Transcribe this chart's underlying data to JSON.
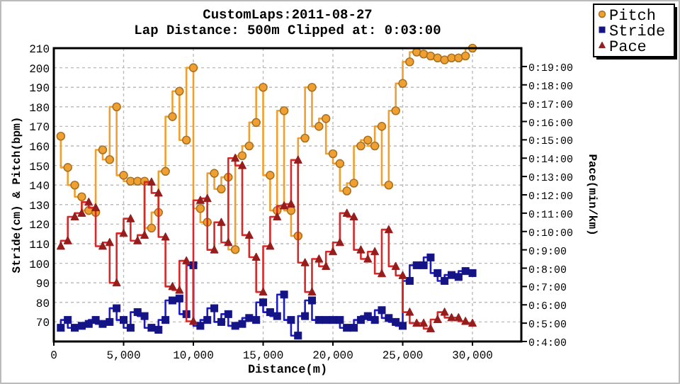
{
  "chart_data": {
    "type": "step",
    "title": "CustomLaps:2011-08-27",
    "subtitle": "Lap Distance: 500m Clipped at: 0:03:00",
    "xlabel": "Distance(m)",
    "ylabel": "Stride(cm) & Pitch(bpm)",
    "y2label": "Pace(min/km)",
    "x": [
      500,
      1000,
      1500,
      2000,
      2500,
      3000,
      3500,
      4000,
      4500,
      5000,
      5500,
      6000,
      6500,
      7000,
      7500,
      8000,
      8500,
      9000,
      9500,
      10000,
      10500,
      11000,
      11500,
      12000,
      12500,
      13000,
      13500,
      14000,
      14500,
      15000,
      15500,
      16000,
      16500,
      17000,
      17500,
      18000,
      18500,
      19000,
      19500,
      20000,
      20500,
      21000,
      21500,
      22000,
      22500,
      23000,
      23500,
      24000,
      24500,
      25000,
      25500,
      26000,
      26500,
      27000,
      27500,
      28000,
      28500,
      29000,
      29500,
      30000
    ],
    "series": [
      {
        "name": "Pitch",
        "color": "#f0a030",
        "marker": "circle",
        "values": [
          165,
          149,
          140,
          134,
          127,
          126,
          158,
          153,
          180,
          145,
          142,
          142,
          142,
          118,
          126,
          147,
          175,
          188,
          163,
          200,
          128,
          121,
          146,
          138,
          144,
          107,
          155,
          160,
          172,
          190,
          145,
          127,
          178,
          127,
          114,
          164,
          190,
          170,
          174,
          156,
          151,
          137,
          141,
          160,
          163,
          160,
          170,
          140,
          178,
          192,
          203,
          208,
          207,
          206,
          205,
          204,
          205,
          205,
          206,
          210
        ]
      },
      {
        "name": "Stride",
        "color": "#1c1cc0",
        "marker": "square",
        "values": [
          67,
          71,
          67,
          68,
          69,
          71,
          69,
          70,
          77,
          71,
          67,
          75,
          73,
          67,
          66,
          71,
          81,
          82,
          74,
          99,
          68,
          71,
          77,
          70,
          74,
          68,
          69,
          72,
          71,
          80,
          75,
          73,
          84,
          71,
          63,
          73,
          81,
          71,
          71,
          71,
          71,
          67,
          67,
          71,
          73,
          71,
          76,
          72,
          70,
          68,
          91,
          99,
          99,
          103,
          95,
          91,
          94,
          93,
          96,
          95
        ]
      },
      {
        "name": "Pace",
        "color": "#d82828",
        "marker": "triangle",
        "axis": "y2",
        "values": [
          9.2,
          9.5,
          10.8,
          11.0,
          11.6,
          11.3,
          9.2,
          9.4,
          7.2,
          9.9,
          10.7,
          9.5,
          9.8,
          12.7,
          12.1,
          9.7,
          7.0,
          6.8,
          8.4,
          5.1,
          11.7,
          11.8,
          9.0,
          10.5,
          9.4,
          14.0,
          13.6,
          9.8,
          8.6,
          6.7,
          9.2,
          10.8,
          11.4,
          11.5,
          13.9,
          8.3,
          6.7,
          8.5,
          8.1,
          8.9,
          9.4,
          11.0,
          10.8,
          9.0,
          8.5,
          8.9,
          7.7,
          10.1,
          8.1,
          7.6,
          5.6,
          5.0,
          5.0,
          4.7,
          5.2,
          5.6,
          5.3,
          5.3,
          5.1,
          5.0
        ]
      }
    ],
    "xlim": [
      0,
      33500
    ],
    "xticks": [
      0,
      {
        "value": 5000,
        "label": "5,000"
      },
      {
        "value": 10000,
        "label": "10,000"
      },
      {
        "value": 15000,
        "label": "15,000"
      },
      {
        "value": 20000,
        "label": "20,000"
      },
      {
        "value": 25000,
        "label": "25,000"
      },
      {
        "value": 30000,
        "label": "30,000"
      }
    ],
    "ylim": [
      60,
      210
    ],
    "yticks": [
      70,
      80,
      90,
      100,
      110,
      120,
      130,
      140,
      150,
      160,
      170,
      180,
      190,
      200,
      210
    ],
    "y2lim": [
      4,
      20
    ],
    "y2ticks": [
      {
        "value": 4,
        "label": "0:4:00"
      },
      {
        "value": 5,
        "label": "0:5:00"
      },
      {
        "value": 6,
        "label": "0:6:00"
      },
      {
        "value": 7,
        "label": "0:7:00"
      },
      {
        "value": 8,
        "label": "0:8:00"
      },
      {
        "value": 9,
        "label": "0:9:00"
      },
      {
        "value": 10,
        "label": "0:10:00"
      },
      {
        "value": 11,
        "label": "0:11:00"
      },
      {
        "value": 12,
        "label": "0:12:00"
      },
      {
        "value": 13,
        "label": "0:13:00"
      },
      {
        "value": 14,
        "label": "0:14:00"
      },
      {
        "value": 15,
        "label": "0:15:00"
      },
      {
        "value": 16,
        "label": "0:16:00"
      },
      {
        "value": 17,
        "label": "0:17:00"
      },
      {
        "value": 18,
        "label": "0:18:00"
      },
      {
        "value": 19,
        "label": "0:19:00"
      }
    ],
    "grid": true,
    "legend": "top right",
    "line_style": "solid"
  }
}
